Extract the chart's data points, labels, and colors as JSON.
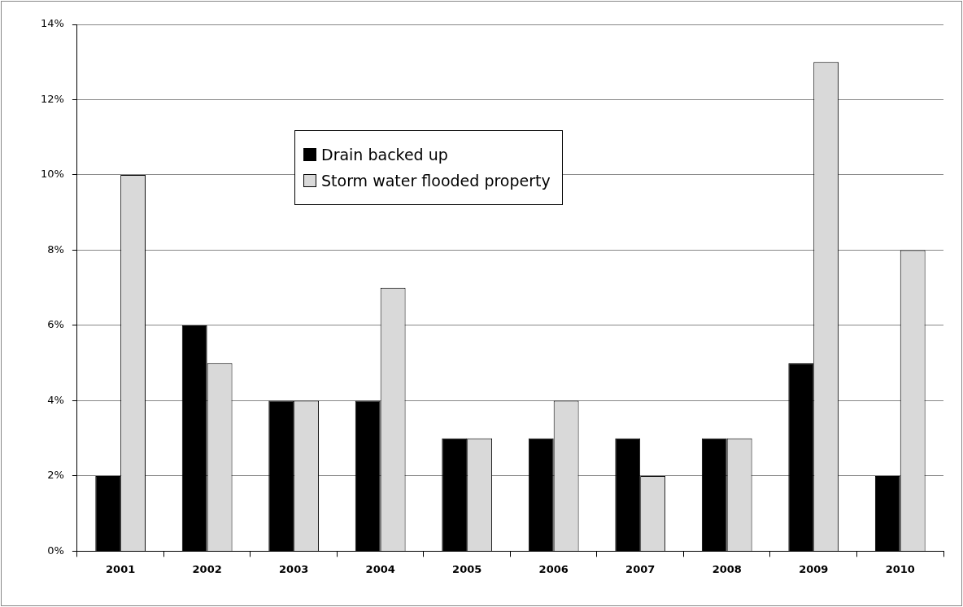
{
  "chart_data": {
    "type": "bar",
    "categories": [
      "2001",
      "2002",
      "2003",
      "2004",
      "2005",
      "2006",
      "2007",
      "2008",
      "2009",
      "2010"
    ],
    "series": [
      {
        "name": "Drain backed up",
        "color": "#000000",
        "values": [
          2,
          6,
          4,
          4,
          3,
          3,
          3,
          3,
          5,
          2
        ]
      },
      {
        "name": "Storm water flooded property",
        "color": "#d9d9d9",
        "values": [
          10,
          5,
          4,
          7,
          3,
          4,
          2,
          3,
          13,
          8
        ]
      }
    ],
    "ylim": [
      0,
      14
    ],
    "yticks": [
      {
        "value": 0,
        "label": "0%"
      },
      {
        "value": 2,
        "label": "2%"
      },
      {
        "value": 4,
        "label": "4%"
      },
      {
        "value": 6,
        "label": "6%"
      },
      {
        "value": 8,
        "label": "8%"
      },
      {
        "value": 10,
        "label": "10%"
      },
      {
        "value": 12,
        "label": "12%"
      },
      {
        "value": 14,
        "label": "14%"
      }
    ],
    "grid": "y",
    "legend": "top left"
  }
}
